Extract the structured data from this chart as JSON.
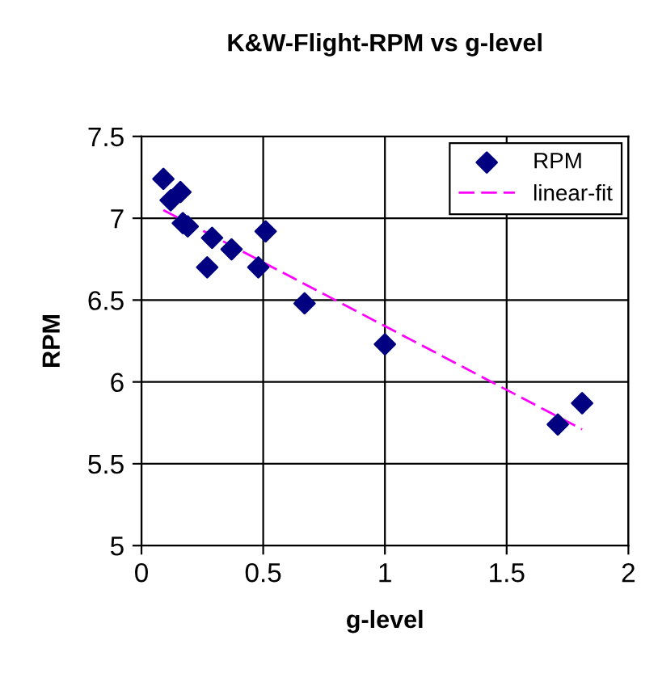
{
  "chart_data": {
    "type": "scatter",
    "title": "K&W-Flight-RPM vs g-level",
    "xlabel": "g-level",
    "ylabel": "RPM",
    "xlim": [
      0,
      2
    ],
    "xticks": [
      0,
      0.5,
      1,
      1.5,
      2
    ],
    "ylim": [
      5,
      7.5
    ],
    "yticks": [
      5,
      5.5,
      6,
      6.5,
      7,
      7.5
    ],
    "grid": true,
    "legend": "top right",
    "series": [
      {
        "name": "RPM",
        "marker": "diamond",
        "color": "#000080",
        "x": [
          0.09,
          0.12,
          0.16,
          0.17,
          0.19,
          0.27,
          0.29,
          0.37,
          0.48,
          0.51,
          0.67,
          1.0,
          1.71,
          1.81
        ],
        "values": [
          7.24,
          7.11,
          7.16,
          6.97,
          6.95,
          6.7,
          6.88,
          6.81,
          6.7,
          6.92,
          6.48,
          6.23,
          5.74,
          5.87
        ]
      },
      {
        "name": "linear-fit",
        "type": "line",
        "line_style": "dashed",
        "color": "#ff00ff",
        "x": [
          0.09,
          1.81
        ],
        "values": [
          7.05,
          5.71
        ]
      }
    ]
  }
}
